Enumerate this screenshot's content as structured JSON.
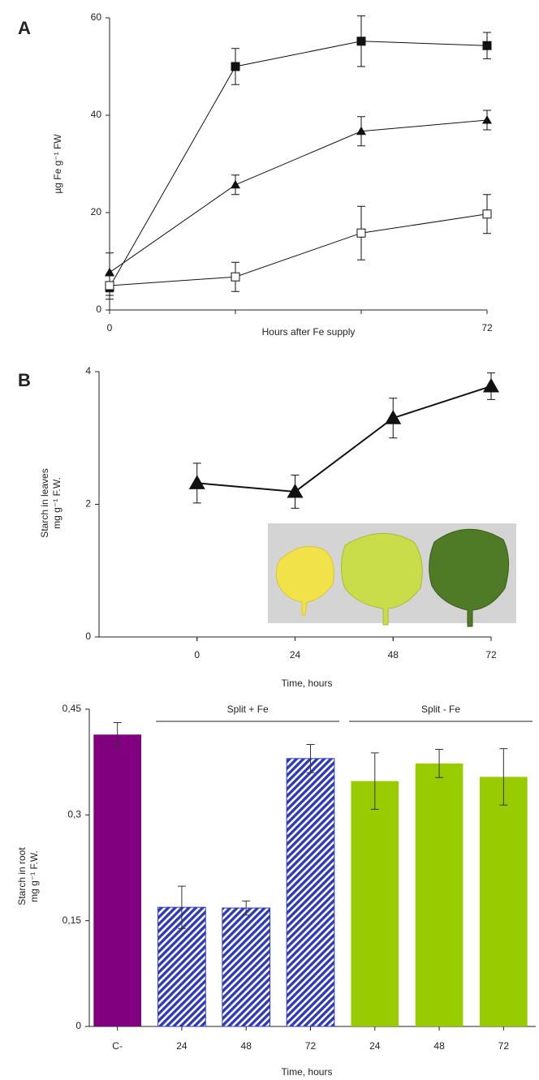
{
  "chart_data": [
    {
      "type": "line",
      "panel_label": "A",
      "x_label": "Hours after Fe supply",
      "y_label": "µg Fe g⁻¹ FW",
      "x": [
        0,
        24,
        48,
        72
      ],
      "xlim": [
        0,
        72
      ],
      "xticks": [
        0,
        72
      ],
      "ylim": [
        0,
        60
      ],
      "yticks": [
        0,
        20,
        40,
        60
      ],
      "series": [
        {
          "marker": "square",
          "color": "#111111",
          "values": [
            4.7,
            50,
            55.2,
            54.3
          ],
          "errors": [
            2.5,
            3.7,
            5.2,
            2.7
          ]
        },
        {
          "marker": "triangle",
          "color": "#111111",
          "values": [
            7.7,
            25.7,
            36.7,
            39
          ],
          "errors": [
            4,
            2,
            3,
            2
          ]
        },
        {
          "marker": "square-open",
          "color": "#111111",
          "values": [
            5,
            6.8,
            15.8,
            19.7
          ],
          "errors": [
            2,
            3,
            5.5,
            4
          ]
        }
      ]
    },
    {
      "type": "line",
      "panel_label": "B",
      "x_label": "Time, hours",
      "y_label": [
        "Starch in leaves",
        "mg g⁻¹ F.W."
      ],
      "x": [
        0,
        24,
        48,
        72
      ],
      "xlim": [
        -24,
        72
      ],
      "xticks": [
        0,
        24,
        48,
        72
      ],
      "ylim": [
        0,
        4
      ],
      "yticks": [
        0,
        2,
        4
      ],
      "series": [
        {
          "marker": "triangle-large",
          "color": "#111111",
          "values": [
            2.32,
            2.19,
            3.3,
            3.78
          ],
          "errors": [
            0.3,
            0.25,
            0.3,
            0.2
          ]
        }
      ]
    },
    {
      "type": "bar",
      "x_label": "Time, hours",
      "y_label": [
        "Starch in root",
        "mg g⁻¹ F.W."
      ],
      "categories": [
        "C-",
        "24",
        "48",
        "72",
        "24",
        "48",
        "72"
      ],
      "values": [
        0.414,
        0.169,
        0.168,
        0.38,
        0.348,
        0.373,
        0.354
      ],
      "errors": [
        0.017,
        0.03,
        0.01,
        0.02,
        0.04,
        0.02,
        0.04
      ],
      "colors": [
        "#800080",
        "#2e3ab8",
        "#2e3ab8",
        "#2e3ab8",
        "#99cc00",
        "#99cc00",
        "#99cc00"
      ],
      "hatched": [
        false,
        true,
        true,
        true,
        false,
        false,
        false
      ],
      "groups": [
        {
          "label": "Split + Fe",
          "first": 1,
          "last": 3
        },
        {
          "label": "Split - Fe",
          "first": 4,
          "last": 6
        }
      ],
      "ylim": [
        0,
        0.45
      ],
      "yticks": [
        {
          "value": 0,
          "label": "0"
        },
        {
          "value": 0.15,
          "label": "0,15"
        },
        {
          "value": 0.3,
          "label": "0,3"
        },
        {
          "value": 0.45,
          "label": "0,45"
        }
      ]
    }
  ]
}
